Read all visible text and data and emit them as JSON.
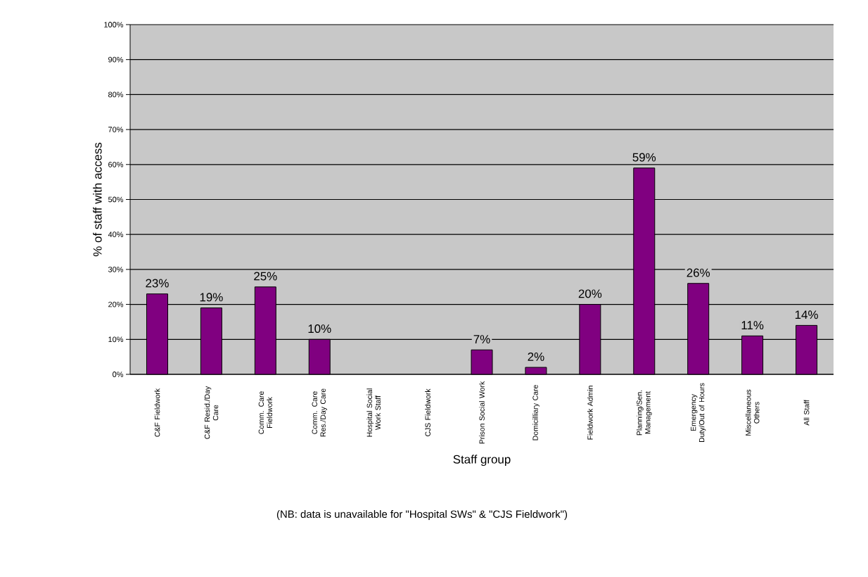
{
  "chart_data": {
    "type": "bar",
    "xlabel": "Staff group",
    "ylabel": "% of staff with access",
    "annotations": [
      "(NB: data is unavailable for \"Hospital SWs\" & \"CJS Fieldwork\")"
    ],
    "categories": [
      "C&F Fieldwork",
      "C&F Resid./Day Care",
      "Comm. Care Fieldwork",
      "Comm. Care Res./Day Care",
      "Hospital Social Work Staff",
      "CJS Fieldwork",
      "Prison Social Work",
      "Domicilliary Care",
      "Fieldwork Admin",
      "Planning/Sen. Management",
      "Emergency Duty/Out of Hours",
      "Miscellaneous Others",
      "All Staff"
    ],
    "values": [
      23,
      19,
      25,
      10,
      null,
      null,
      7,
      2,
      20,
      59,
      26,
      11,
      14
    ],
    "value_labels": [
      "23%",
      "19%",
      "25%",
      "10%",
      null,
      null,
      "7%",
      "2%",
      "20%",
      "59%",
      "26%",
      "11%",
      "14%"
    ],
    "color": "#800080",
    "ylim": [
      0,
      100
    ],
    "yticks": [
      {
        "value": 0,
        "label": "0%"
      },
      {
        "value": 10,
        "label": "10%"
      },
      {
        "value": 20,
        "label": "20%"
      },
      {
        "value": 30,
        "label": "30%"
      },
      {
        "value": 40,
        "label": "40%"
      },
      {
        "value": 50,
        "label": "50%"
      },
      {
        "value": 60,
        "label": "60%"
      },
      {
        "value": 70,
        "label": "70%"
      },
      {
        "value": 80,
        "label": "80%"
      },
      {
        "value": 90,
        "label": "90%"
      },
      {
        "value": 100,
        "label": "100%"
      }
    ],
    "grid": "y"
  }
}
